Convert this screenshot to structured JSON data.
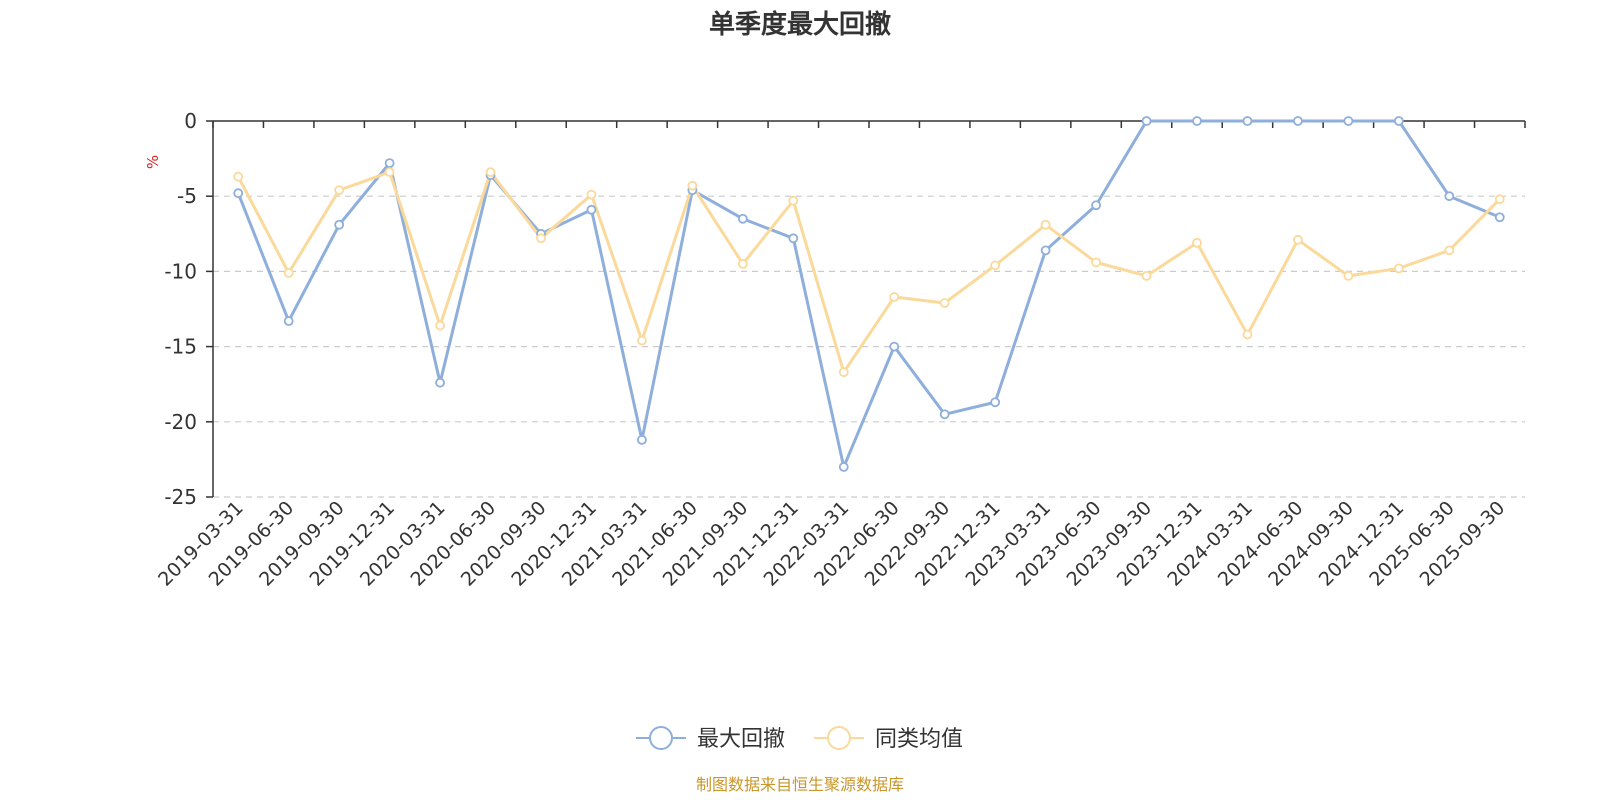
{
  "chart_data": {
    "type": "line",
    "title": "单季度最大回撤",
    "ylabel": "%",
    "ylim": [
      -25,
      0
    ],
    "yticks": [
      0,
      -5,
      -10,
      -15,
      -20,
      -25
    ],
    "grid": true,
    "legend_position": "bottom-center",
    "categories": [
      "2019-03-31",
      "2019-06-30",
      "2019-09-30",
      "2019-12-31",
      "2020-03-31",
      "2020-06-30",
      "2020-09-30",
      "2020-12-31",
      "2021-03-31",
      "2021-06-30",
      "2021-09-30",
      "2021-12-31",
      "2022-03-31",
      "2022-06-30",
      "2022-09-30",
      "2022-12-31",
      "2023-03-31",
      "2023-06-30",
      "2023-09-30",
      "2023-12-31",
      "2024-03-31",
      "2024-06-30",
      "2024-09-30",
      "2024-12-31",
      "2025-06-30",
      "2025-09-30"
    ],
    "series": [
      {
        "name": "最大回撤",
        "color": "#8eaedb",
        "values": [
          -4.8,
          -13.3,
          -6.9,
          -2.8,
          -17.4,
          -3.6,
          -7.5,
          -5.9,
          -21.2,
          -4.6,
          -6.5,
          -7.8,
          -23.0,
          -15.0,
          -19.5,
          -18.7,
          -8.6,
          -5.6,
          0.0,
          0.0,
          0.0,
          0.0,
          0.0,
          0.0,
          -5.0,
          -6.4
        ]
      },
      {
        "name": "同类均值",
        "color": "#fad99b",
        "values": [
          -3.7,
          -10.1,
          -4.6,
          -3.4,
          -13.6,
          -3.4,
          -7.8,
          -4.9,
          -14.6,
          -4.3,
          -9.5,
          -5.3,
          -16.7,
          -11.7,
          -12.1,
          -9.6,
          -6.9,
          -9.4,
          -10.3,
          -8.1,
          -14.2,
          -7.9,
          -10.3,
          -9.8,
          -8.6,
          -5.2
        ]
      }
    ],
    "source": "制图数据来自恒生聚源数据库"
  }
}
